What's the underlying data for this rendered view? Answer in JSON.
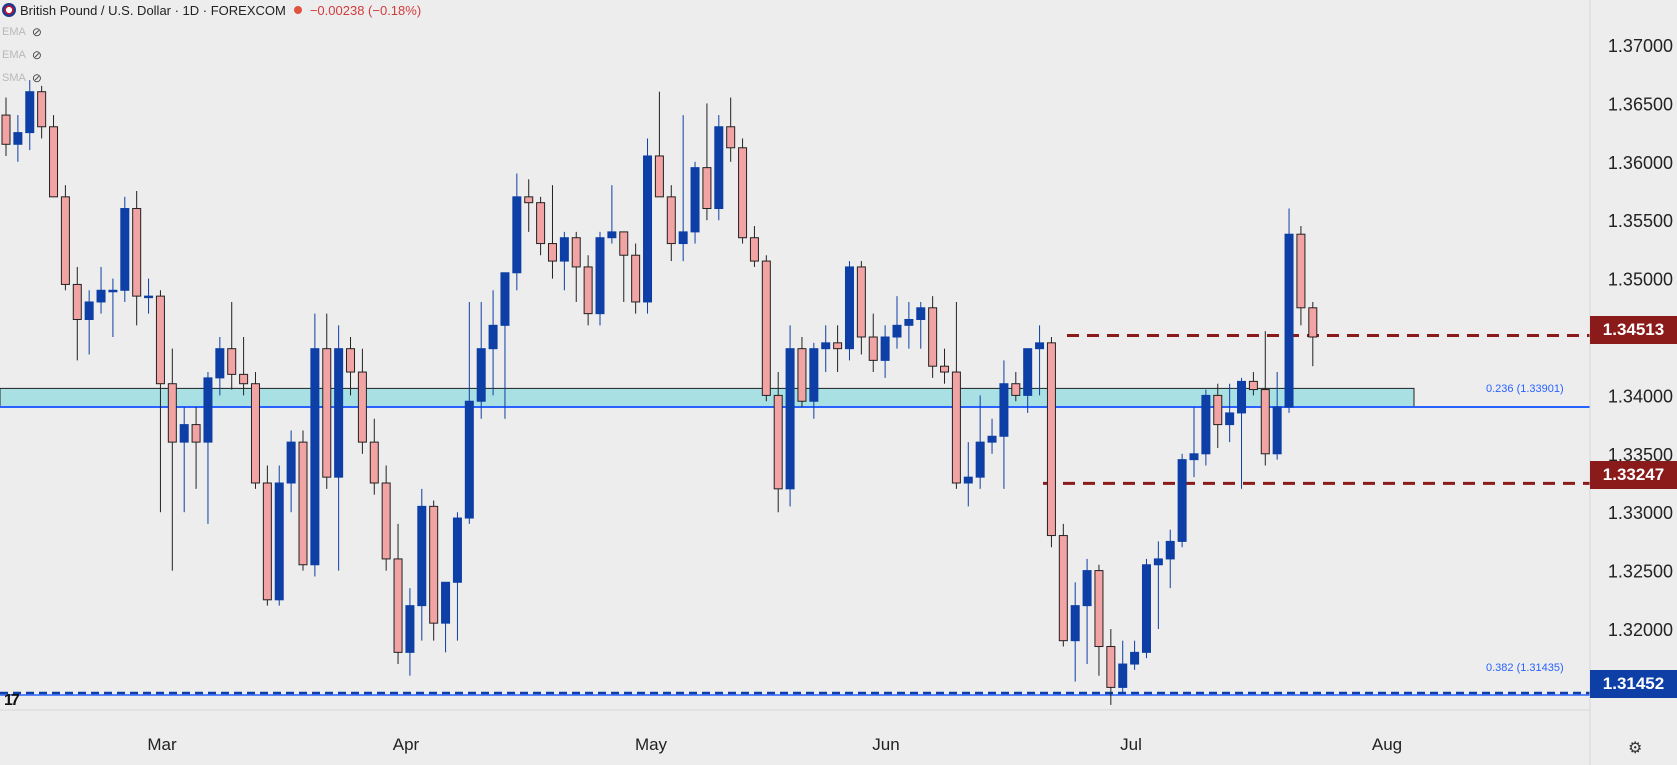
{
  "header": {
    "title": "British Pound / U.S. Dollar · 1D · FOREXCOM",
    "change": "−0.00238 (−0.18%)"
  },
  "indicators": [
    "EMA",
    "EMA",
    "SMA"
  ],
  "colors": {
    "bull": "#0d3fa6",
    "bear": "#f2a3a3",
    "bear_border": "#222222",
    "zone_fill": "#a8e0e4",
    "fib_line": "#2962ff",
    "resistance_line": "#8b1a1a",
    "support_tag": "#0d3fa6"
  },
  "price_tags": {
    "resistance_upper": "1.34513",
    "resistance_lower": "1.33247",
    "support": "1.31452"
  },
  "fib_labels": {
    "f236": "0.236 (1.33901)",
    "f382": "0.382 (1.31435)"
  },
  "chart_data": {
    "type": "candlestick",
    "x_labels": [
      "Mar",
      "Apr",
      "May",
      "Jun",
      "Jul",
      "Aug"
    ],
    "y_ticks": [
      "1.37000",
      "1.36500",
      "1.36000",
      "1.35500",
      "1.35000",
      "1.34000",
      "1.33500",
      "1.33000",
      "1.32500",
      "1.32000"
    ],
    "ylim": [
      1.3135,
      1.373
    ],
    "zone": [
      1.339,
      1.3406
    ],
    "levels": {
      "resistance_upper": 1.34513,
      "resistance_lower": 1.33247,
      "support": 1.31452,
      "fib_236": 1.33901,
      "fib_382": 1.31435
    },
    "candles": [
      [
        1.364,
        1.3655,
        1.3605,
        1.3615
      ],
      [
        1.3615,
        1.364,
        1.36,
        1.3625
      ],
      [
        1.3625,
        1.367,
        1.361,
        1.366
      ],
      [
        1.366,
        1.3665,
        1.362,
        1.363
      ],
      [
        1.363,
        1.364,
        1.357,
        1.357
      ],
      [
        1.357,
        1.358,
        1.349,
        1.3495
      ],
      [
        1.3495,
        1.351,
        1.343,
        1.3465
      ],
      [
        1.3465,
        1.349,
        1.3435,
        1.348
      ],
      [
        1.348,
        1.351,
        1.347,
        1.349
      ],
      [
        1.349,
        1.35,
        1.345,
        1.349
      ],
      [
        1.349,
        1.357,
        1.348,
        1.356
      ],
      [
        1.356,
        1.3575,
        1.346,
        1.3485
      ],
      [
        1.3485,
        1.35,
        1.347,
        1.3485
      ],
      [
        1.3485,
        1.349,
        1.33,
        1.341
      ],
      [
        1.341,
        1.344,
        1.325,
        1.336
      ],
      [
        1.336,
        1.339,
        1.33,
        1.3375
      ],
      [
        1.3375,
        1.339,
        1.332,
        1.336
      ],
      [
        1.336,
        1.342,
        1.329,
        1.3415
      ],
      [
        1.3415,
        1.345,
        1.34,
        1.344
      ],
      [
        1.344,
        1.348,
        1.3405,
        1.3418
      ],
      [
        1.3418,
        1.345,
        1.34,
        1.341
      ],
      [
        1.341,
        1.342,
        1.332,
        1.3325
      ],
      [
        1.3325,
        1.334,
        1.322,
        1.3225
      ],
      [
        1.3225,
        1.334,
        1.322,
        1.3325
      ],
      [
        1.3325,
        1.337,
        1.33,
        1.336
      ],
      [
        1.336,
        1.337,
        1.325,
        1.3255
      ],
      [
        1.3255,
        1.347,
        1.3245,
        1.344
      ],
      [
        1.344,
        1.347,
        1.332,
        1.333
      ],
      [
        1.333,
        1.346,
        1.325,
        1.344
      ],
      [
        1.344,
        1.345,
        1.34,
        1.342
      ],
      [
        1.342,
        1.344,
        1.335,
        1.336
      ],
      [
        1.336,
        1.338,
        1.3315,
        1.3325
      ],
      [
        1.3325,
        1.334,
        1.325,
        1.326
      ],
      [
        1.326,
        1.329,
        1.317,
        1.318
      ],
      [
        1.318,
        1.3235,
        1.316,
        1.322
      ],
      [
        1.322,
        1.332,
        1.319,
        1.3305
      ],
      [
        1.3305,
        1.331,
        1.319,
        1.3205
      ],
      [
        1.3205,
        1.324,
        1.318,
        1.324
      ],
      [
        1.324,
        1.33,
        1.319,
        1.3295
      ],
      [
        1.3295,
        1.348,
        1.329,
        1.3395
      ],
      [
        1.3395,
        1.348,
        1.338,
        1.344
      ],
      [
        1.344,
        1.349,
        1.34,
        1.346
      ],
      [
        1.346,
        1.35,
        1.338,
        1.3505
      ],
      [
        1.3505,
        1.359,
        1.349,
        1.357
      ],
      [
        1.357,
        1.3585,
        1.354,
        1.3565
      ],
      [
        1.3565,
        1.357,
        1.352,
        1.353
      ],
      [
        1.353,
        1.358,
        1.35,
        1.3515
      ],
      [
        1.3515,
        1.354,
        1.349,
        1.3535
      ],
      [
        1.3535,
        1.354,
        1.348,
        1.351
      ],
      [
        1.351,
        1.352,
        1.346,
        1.347
      ],
      [
        1.347,
        1.354,
        1.346,
        1.3535
      ],
      [
        1.3535,
        1.358,
        1.353,
        1.354
      ],
      [
        1.354,
        1.354,
        1.348,
        1.352
      ],
      [
        1.352,
        1.353,
        1.347,
        1.348
      ],
      [
        1.348,
        1.362,
        1.347,
        1.3605
      ],
      [
        1.3605,
        1.366,
        1.357,
        1.357
      ],
      [
        1.357,
        1.358,
        1.3515,
        1.353
      ],
      [
        1.353,
        1.364,
        1.3515,
        1.354
      ],
      [
        1.354,
        1.36,
        1.353,
        1.3595
      ],
      [
        1.3595,
        1.365,
        1.355,
        1.356
      ],
      [
        1.356,
        1.364,
        1.355,
        1.363
      ],
      [
        1.363,
        1.3655,
        1.36,
        1.3612
      ],
      [
        1.3612,
        1.362,
        1.353,
        1.3535
      ],
      [
        1.3535,
        1.3545,
        1.351,
        1.3515
      ],
      [
        1.3515,
        1.352,
        1.3395,
        1.34
      ],
      [
        1.34,
        1.342,
        1.33,
        1.332
      ],
      [
        1.332,
        1.346,
        1.3305,
        1.344
      ],
      [
        1.344,
        1.345,
        1.339,
        1.3395
      ],
      [
        1.3395,
        1.3445,
        1.338,
        1.344
      ],
      [
        1.344,
        1.346,
        1.342,
        1.3445
      ],
      [
        1.3445,
        1.346,
        1.342,
        1.344
      ],
      [
        1.344,
        1.3515,
        1.343,
        1.351
      ],
      [
        1.351,
        1.3515,
        1.3435,
        1.345
      ],
      [
        1.345,
        1.347,
        1.342,
        1.343
      ],
      [
        1.343,
        1.346,
        1.3415,
        1.345
      ],
      [
        1.345,
        1.3485,
        1.344,
        1.346
      ],
      [
        1.346,
        1.348,
        1.344,
        1.3465
      ],
      [
        1.3465,
        1.348,
        1.344,
        1.3475
      ],
      [
        1.3475,
        1.3485,
        1.3415,
        1.3425
      ],
      [
        1.3425,
        1.344,
        1.341,
        1.342
      ],
      [
        1.342,
        1.348,
        1.332,
        1.3325
      ],
      [
        1.3325,
        1.336,
        1.3305,
        1.333
      ],
      [
        1.333,
        1.34,
        1.332,
        1.336
      ],
      [
        1.336,
        1.338,
        1.335,
        1.3365
      ],
      [
        1.3365,
        1.343,
        1.332,
        1.341
      ],
      [
        1.341,
        1.342,
        1.3395,
        1.34
      ],
      [
        1.34,
        1.344,
        1.3385,
        1.344
      ],
      [
        1.344,
        1.346,
        1.34,
        1.3445
      ],
      [
        1.3445,
        1.345,
        1.327,
        1.328
      ],
      [
        1.328,
        1.329,
        1.3185,
        1.319
      ],
      [
        1.319,
        1.324,
        1.3155,
        1.322
      ],
      [
        1.322,
        1.326,
        1.317,
        1.325
      ],
      [
        1.325,
        1.3255,
        1.316,
        1.3185
      ],
      [
        1.3185,
        1.32,
        1.3135,
        1.315
      ],
      [
        1.315,
        1.319,
        1.3145,
        1.317
      ],
      [
        1.317,
        1.319,
        1.3165,
        1.318
      ],
      [
        1.318,
        1.326,
        1.3175,
        1.3255
      ],
      [
        1.3255,
        1.3275,
        1.32,
        1.326
      ],
      [
        1.326,
        1.3285,
        1.3235,
        1.3275
      ],
      [
        1.3275,
        1.335,
        1.327,
        1.3345
      ],
      [
        1.3345,
        1.339,
        1.333,
        1.335
      ],
      [
        1.335,
        1.3405,
        1.334,
        1.34
      ],
      [
        1.34,
        1.341,
        1.3355,
        1.3375
      ],
      [
        1.3375,
        1.341,
        1.336,
        1.3385
      ],
      [
        1.3385,
        1.3415,
        1.332,
        1.3412
      ],
      [
        1.3412,
        1.342,
        1.34,
        1.3405
      ],
      [
        1.3405,
        1.3455,
        1.334,
        1.335
      ],
      [
        1.335,
        1.342,
        1.3345,
        1.339
      ],
      [
        1.339,
        1.356,
        1.3385,
        1.3538
      ],
      [
        1.3538,
        1.3545,
        1.346,
        1.3475
      ],
      [
        1.3475,
        1.348,
        1.3425,
        1.345
      ]
    ]
  }
}
